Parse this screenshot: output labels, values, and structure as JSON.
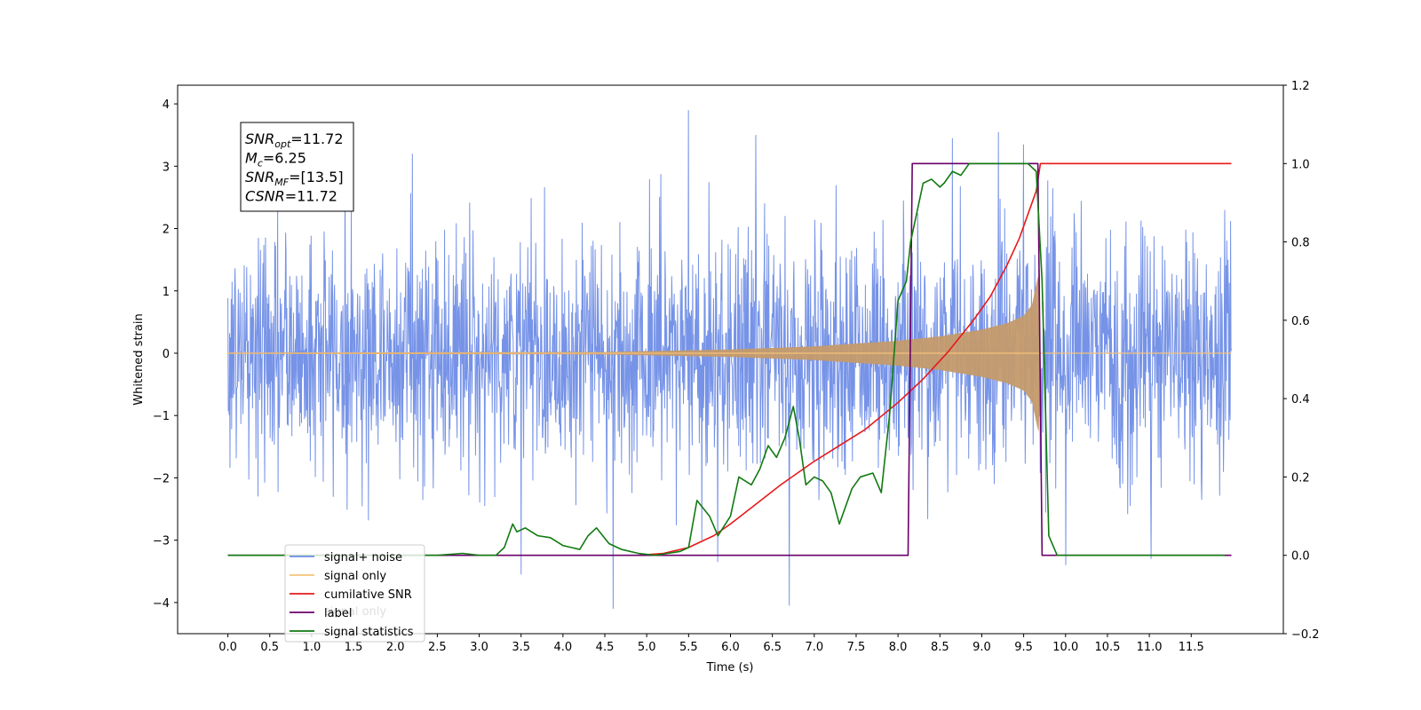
{
  "chart_data": {
    "type": "line",
    "title": "",
    "xlabel": "Time (s)",
    "ylabel": "Whitened strain",
    "xlim": [
      -0.6,
      12.6
    ],
    "ylim_left": [
      -4.5,
      4.3
    ],
    "ylim_right": [
      -0.2,
      1.2
    ],
    "x_ticks": [
      "0.0",
      "0.5",
      "1.0",
      "1.5",
      "2.0",
      "2.5",
      "3.0",
      "3.5",
      "4.0",
      "4.5",
      "5.0",
      "5.5",
      "6.0",
      "6.5",
      "7.0",
      "7.5",
      "8.0",
      "8.5",
      "9.0",
      "9.5",
      "10.0",
      "10.5",
      "11.0",
      "11.5"
    ],
    "y_ticks_left": [
      "−4",
      "−3",
      "−2",
      "−1",
      "0",
      "1",
      "2",
      "3",
      "4"
    ],
    "y_ticks_right": [
      "−0.2",
      "0.0",
      "0.2",
      "0.4",
      "0.6",
      "0.8",
      "1.0",
      "1.2"
    ],
    "grid": false,
    "legend_position": "lower-left",
    "annotation": {
      "lines": [
        {
          "sym": "SNR",
          "sub": "opt",
          "value": "=11.72"
        },
        {
          "sym": "M",
          "sub": "c",
          "value": "=6.25"
        },
        {
          "sym": "SNR",
          "sub": "MF",
          "value": "=[13.5]"
        },
        {
          "sym": "CSNR",
          "sub": "",
          "value": "=11.72"
        }
      ]
    },
    "series": [
      {
        "name": "signal+ noise",
        "color": "#6f8de6",
        "axis": "left",
        "kind": "noise",
        "x_range": [
          0.0,
          11.98
        ],
        "typical_envelope": [
          -2.2,
          2.4
        ],
        "notable_extremes": [
          {
            "x": 5.5,
            "y": 3.9
          },
          {
            "x": 4.6,
            "y": -4.1
          },
          {
            "x": 6.7,
            "y": -4.05
          },
          {
            "x": 3.5,
            "y": -3.55
          },
          {
            "x": 5.85,
            "y": -3.35
          },
          {
            "x": 6.3,
            "y": 3.5
          },
          {
            "x": 8.65,
            "y": 3.45
          },
          {
            "x": 9.2,
            "y": 3.55
          },
          {
            "x": 9.5,
            "y": 3.35
          },
          {
            "x": 11.02,
            "y": -3.3
          },
          {
            "x": 2.2,
            "y": 3.2
          },
          {
            "x": 10.0,
            "y": -3.4
          }
        ]
      },
      {
        "name": "signal only",
        "color": "#f5c27a",
        "axis": "left",
        "kind": "chirp",
        "chirp_start": 0.0,
        "chirp_end": 9.7,
        "chirp_onset": 4.5,
        "amplitude_points": [
          [
            0,
            0.01
          ],
          [
            4.5,
            0.02
          ],
          [
            6.0,
            0.06
          ],
          [
            7.0,
            0.11
          ],
          [
            8.0,
            0.2
          ],
          [
            8.5,
            0.27
          ],
          [
            9.0,
            0.38
          ],
          [
            9.3,
            0.48
          ],
          [
            9.5,
            0.6
          ],
          [
            9.6,
            0.78
          ],
          [
            9.68,
            1.3
          ],
          [
            9.7,
            0.0
          ]
        ]
      },
      {
        "name": "cumilative SNR",
        "color": "#e8191b",
        "axis": "right",
        "x": [
          4.9,
          5.2,
          5.5,
          5.8,
          6.0,
          6.3,
          6.6,
          7.0,
          7.3,
          7.6,
          8.0,
          8.3,
          8.6,
          8.9,
          9.1,
          9.3,
          9.45,
          9.55,
          9.65,
          9.7,
          9.75,
          10.0,
          11.0,
          11.5,
          11.98
        ],
        "values": [
          0.0,
          0.005,
          0.02,
          0.05,
          0.08,
          0.13,
          0.18,
          0.24,
          0.28,
          0.32,
          0.39,
          0.45,
          0.52,
          0.6,
          0.66,
          0.74,
          0.81,
          0.87,
          0.93,
          1.0,
          1.0,
          1.0,
          1.0,
          1.0,
          1.0
        ]
      },
      {
        "name": "label",
        "color": "#6a006a",
        "axis": "right",
        "x": [
          0.0,
          8.12,
          8.17,
          9.67,
          9.72,
          11.98
        ],
        "values": [
          0.0,
          0.0,
          1.0,
          1.0,
          0.0,
          0.0
        ]
      },
      {
        "name": "signal statistics",
        "color": "#117a11",
        "axis": "right",
        "x": [
          0.0,
          0.5,
          1.0,
          1.5,
          2.0,
          2.5,
          2.8,
          3.0,
          3.2,
          3.3,
          3.4,
          3.45,
          3.55,
          3.7,
          3.85,
          4.0,
          4.1,
          4.2,
          4.3,
          4.4,
          4.55,
          4.7,
          4.9,
          5.1,
          5.25,
          5.4,
          5.5,
          5.6,
          5.75,
          5.85,
          6.0,
          6.1,
          6.25,
          6.35,
          6.45,
          6.55,
          6.65,
          6.75,
          6.82,
          6.9,
          7.0,
          7.1,
          7.2,
          7.3,
          7.45,
          7.55,
          7.7,
          7.8,
          7.9,
          8.0,
          8.1,
          8.15,
          8.25,
          8.3,
          8.4,
          8.5,
          8.55,
          8.65,
          8.75,
          8.85,
          9.0,
          9.2,
          9.4,
          9.55,
          9.65,
          9.72,
          9.8,
          9.9,
          10.1,
          10.6,
          11.0,
          11.5,
          11.9
        ],
        "values": [
          0.0,
          0.0,
          0.0,
          0.0,
          0.0,
          0.0,
          0.005,
          0.0,
          0.0,
          0.02,
          0.08,
          0.06,
          0.07,
          0.05,
          0.045,
          0.025,
          0.02,
          0.015,
          0.05,
          0.07,
          0.03,
          0.015,
          0.005,
          0.0,
          0.005,
          0.01,
          0.02,
          0.14,
          0.1,
          0.05,
          0.1,
          0.2,
          0.18,
          0.22,
          0.28,
          0.25,
          0.3,
          0.38,
          0.3,
          0.18,
          0.2,
          0.19,
          0.16,
          0.08,
          0.17,
          0.2,
          0.21,
          0.16,
          0.36,
          0.65,
          0.7,
          0.8,
          0.9,
          0.95,
          0.96,
          0.94,
          0.95,
          0.98,
          0.97,
          1.0,
          1.0,
          1.0,
          1.0,
          1.0,
          0.98,
          0.7,
          0.05,
          0.0,
          0.0,
          0.0,
          0.0,
          0.0,
          0.0
        ]
      }
    ],
    "legend_entries": [
      {
        "label": "signal+ noise",
        "color": "#6f8de6"
      },
      {
        "label": "signal only",
        "color": "#f5c27a"
      },
      {
        "label": "cumilative SNR",
        "color": "#e8191b"
      },
      {
        "label": "label",
        "color": "#6a006a"
      },
      {
        "label": "signal statistics",
        "color": "#117a11"
      }
    ],
    "legend_ghost_text": "signal only"
  }
}
